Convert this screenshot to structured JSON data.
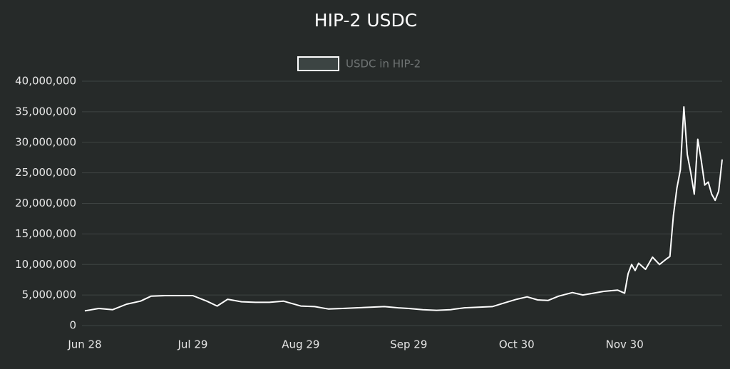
{
  "chart_data": {
    "type": "line",
    "title": "HIP-2 USDC",
    "x": [
      "Jun 28",
      "Jul 2",
      "Jul 6",
      "Jul 10",
      "Jul 14",
      "Jul 17",
      "Jul 21",
      "Jul 25",
      "Jul 29",
      "Aug 2",
      "Aug 5",
      "Aug 8",
      "Aug 12",
      "Aug 16",
      "Aug 20",
      "Aug 24",
      "Aug 29",
      "Sep 2",
      "Sep 6",
      "Sep 10",
      "Sep 14",
      "Sep 18",
      "Sep 22",
      "Sep 26",
      "Sep 29",
      "Oct 3",
      "Oct 7",
      "Oct 11",
      "Oct 15",
      "Oct 19",
      "Oct 23",
      "Oct 27",
      "Oct 30",
      "Nov 2",
      "Nov 5",
      "Nov 8",
      "Nov 11",
      "Nov 15",
      "Nov 18",
      "Nov 21",
      "Nov 24",
      "Nov 28",
      "Nov 30",
      "Dec 1",
      "Dec 2",
      "Dec 3",
      "Dec 4",
      "Dec 6",
      "Dec 8",
      "Dec 10",
      "Dec 12",
      "Dec 13",
      "Dec 14",
      "Dec 15",
      "Dec 16",
      "Dec 17",
      "Dec 18",
      "Dec 19",
      "Dec 20",
      "Dec 21",
      "Dec 22",
      "Dec 23",
      "Dec 24",
      "Dec 25",
      "Dec 26",
      "Dec 27",
      "Dec 28"
    ],
    "series": [
      {
        "name": "USDC in HIP-2",
        "color": "#ffffff",
        "values": [
          2400000,
          2800000,
          2600000,
          3500000,
          4000000,
          4800000,
          4900000,
          4900000,
          4900000,
          4000000,
          3200000,
          4300000,
          3900000,
          3800000,
          3800000,
          4000000,
          3200000,
          3100000,
          2700000,
          2800000,
          2900000,
          3000000,
          3100000,
          2900000,
          2800000,
          2600000,
          2500000,
          2600000,
          2900000,
          3000000,
          3100000,
          3800000,
          4300000,
          4700000,
          4200000,
          4100000,
          4800000,
          5400000,
          5000000,
          5300000,
          5600000,
          5800000,
          5300000,
          8500000,
          10000000,
          9000000,
          10200000,
          9200000,
          11200000,
          10000000,
          10900000,
          11300000,
          18000000,
          22500000,
          25500000,
          35800000,
          28000000,
          25000000,
          21500000,
          30500000,
          27000000,
          23000000,
          23500000,
          21500000,
          20500000,
          22000000,
          27200000
        ]
      }
    ],
    "xticks": [
      "Jun 28",
      "Jul 29",
      "Aug 29",
      "Sep 29",
      "Oct 30",
      "Nov 30"
    ],
    "ylim": [
      0,
      40000000
    ],
    "yticks": [
      0,
      {
        "value": 5000000,
        "label": "5,000,000"
      },
      {
        "value": 10000000,
        "label": "10,000,000"
      },
      {
        "value": 15000000,
        "label": "15,000,000"
      },
      {
        "value": 20000000,
        "label": "20,000,000"
      },
      {
        "value": 25000000,
        "label": "25,000,000"
      },
      {
        "value": 30000000,
        "label": "30,000,000"
      },
      {
        "value": 35000000,
        "label": "35,000,000"
      },
      {
        "value": 40000000,
        "label": "40,000,000"
      }
    ],
    "grid": true
  }
}
